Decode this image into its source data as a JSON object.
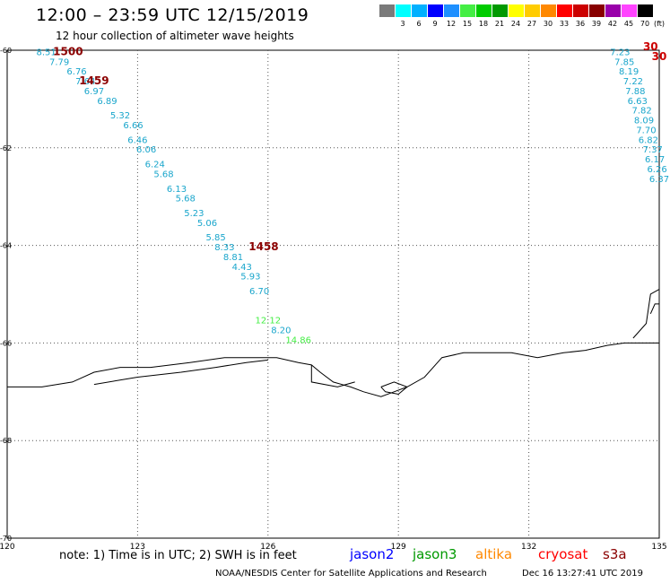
{
  "header": {
    "title": "12:00 – 23:59 UTC 12/15/2019",
    "subtitle": "12 hour collection of altimeter wave heights"
  },
  "colorbar": {
    "unit": "(ft)",
    "items": [
      {
        "label": "",
        "color": "#7a7a7a"
      },
      {
        "label": "3",
        "color": "#00ffff"
      },
      {
        "label": "6",
        "color": "#00b0ff"
      },
      {
        "label": "9",
        "color": "#0000ff"
      },
      {
        "label": "12",
        "color": "#1e90ff"
      },
      {
        "label": "15",
        "color": "#44ee44"
      },
      {
        "label": "18",
        "color": "#00cc00"
      },
      {
        "label": "21",
        "color": "#009900"
      },
      {
        "label": "24",
        "color": "#ffff00"
      },
      {
        "label": "27",
        "color": "#ffcc00"
      },
      {
        "label": "30",
        "color": "#ff8800"
      },
      {
        "label": "33",
        "color": "#ff0000"
      },
      {
        "label": "36",
        "color": "#cc0000"
      },
      {
        "label": "39",
        "color": "#880000"
      },
      {
        "label": "42",
        "color": "#9900aa"
      },
      {
        "label": "45",
        "color": "#ff44ff"
      },
      {
        "label": "70",
        "color": "#000000"
      }
    ]
  },
  "map": {
    "lon_range": [
      120,
      135
    ],
    "lat_range": [
      -70,
      -60
    ],
    "lon_ticks": [
      "120",
      "123",
      "126",
      "129",
      "132",
      "135"
    ],
    "lat_ticks": [
      "-60",
      "-62",
      "-64",
      "-66",
      "-68",
      "-70"
    ],
    "gridlines": true,
    "coast_color": "#000000"
  },
  "track_a": {
    "color": "#1aa6cc",
    "values": [
      "8.51",
      "7.79",
      "6.76",
      "7.64",
      "6.97",
      "6.89",
      "5.32",
      "6.66",
      "6.46",
      "6.06",
      "6.24",
      "5.68",
      "6.13",
      "5.68",
      "5.23",
      "5.06",
      "5.85",
      "8.33",
      "8.81",
      "4.43",
      "5.93",
      "6.70"
    ],
    "lon": [
      120.9,
      121.2,
      121.6,
      121.8,
      122.0,
      122.3,
      122.6,
      122.9,
      123.0,
      123.2,
      123.4,
      123.6,
      123.9,
      124.1,
      124.3,
      124.6,
      124.8,
      125.0,
      125.2,
      125.4,
      125.6,
      125.8
    ],
    "lat": [
      -60.1,
      -60.3,
      -60.5,
      -60.7,
      -60.9,
      -61.1,
      -61.4,
      -61.6,
      -61.9,
      -62.1,
      -62.4,
      -62.6,
      -62.9,
      -63.1,
      -63.4,
      -63.6,
      -63.9,
      -64.1,
      -64.3,
      -64.5,
      -64.7,
      -65.0
    ]
  },
  "track_b": {
    "values": [
      "12.12",
      "8.20",
      "14.86"
    ],
    "colors": [
      "#44ee44",
      "#1aa6cc",
      "#44ee44"
    ],
    "lon": [
      126.0,
      126.3,
      126.7
    ],
    "lat": [
      -65.6,
      -65.8,
      -66.0
    ]
  },
  "track_c": {
    "color": "#1aa6cc",
    "values": [
      "7.23",
      "7.85",
      "8.19",
      "7.22",
      "7.88",
      "6.63",
      "7.82",
      "8.09",
      "7.70",
      "6.82",
      "7.37",
      "6.17",
      "6.26",
      "6.37"
    ],
    "lon": [
      134.1,
      134.2,
      134.3,
      134.4,
      134.45,
      134.5,
      134.6,
      134.65,
      134.7,
      134.75,
      134.85,
      134.9,
      134.95,
      135.0
    ],
    "lat": [
      -60.1,
      -60.3,
      -60.5,
      -60.7,
      -60.9,
      -61.1,
      -61.3,
      -61.5,
      -61.7,
      -61.9,
      -62.1,
      -62.3,
      -62.5,
      -62.7
    ]
  },
  "time_labels": [
    {
      "text": "1500",
      "lon": 121.4,
      "lat": -60.1,
      "color": "#8b0000"
    },
    {
      "text": "1459",
      "lon": 122.0,
      "lat": -60.7,
      "color": "#8b0000"
    },
    {
      "text": "1458",
      "lon": 125.9,
      "lat": -64.1,
      "color": "#8b0000"
    },
    {
      "text": "30",
      "lon": 134.8,
      "lat": -60.0,
      "color": "#cc0000"
    },
    {
      "text": "30",
      "lon": 135.0,
      "lat": -60.2,
      "color": "#cc0000"
    }
  ],
  "coastline": [
    [
      [
        120.0,
        -66.9
      ],
      [
        120.8,
        -66.9
      ],
      [
        121.5,
        -66.8
      ],
      [
        122.0,
        -66.6
      ],
      [
        122.6,
        -66.5
      ],
      [
        123.3,
        -66.5
      ],
      [
        124.2,
        -66.4
      ],
      [
        125.0,
        -66.3
      ],
      [
        125.7,
        -66.3
      ],
      [
        126.2,
        -66.3
      ],
      [
        126.7,
        -66.4
      ],
      [
        127.0,
        -66.45
      ],
      [
        127.2,
        -66.6
      ],
      [
        127.5,
        -66.8
      ],
      [
        127.9,
        -66.9
      ],
      [
        128.2,
        -67.0
      ],
      [
        128.6,
        -67.1
      ],
      [
        128.9,
        -67.0
      ],
      [
        129.2,
        -66.9
      ],
      [
        129.6,
        -66.7
      ],
      [
        130.0,
        -66.3
      ],
      [
        130.5,
        -66.2
      ],
      [
        131.1,
        -66.2
      ],
      [
        131.6,
        -66.2
      ],
      [
        132.2,
        -66.3
      ],
      [
        132.8,
        -66.2
      ],
      [
        133.3,
        -66.15
      ],
      [
        133.8,
        -66.05
      ],
      [
        134.2,
        -66.0
      ],
      [
        134.6,
        -66.0
      ],
      [
        135.0,
        -66.0
      ]
    ],
    [
      [
        122.0,
        -66.85
      ],
      [
        123.0,
        -66.7
      ],
      [
        124.0,
        -66.6
      ],
      [
        124.8,
        -66.5
      ],
      [
        125.5,
        -66.4
      ],
      [
        126.0,
        -66.35
      ]
    ],
    [
      [
        127.0,
        -66.45
      ],
      [
        127.0,
        -66.8
      ],
      [
        127.6,
        -66.9
      ],
      [
        128.0,
        -66.8
      ]
    ],
    [
      [
        128.6,
        -66.9
      ],
      [
        128.9,
        -66.8
      ],
      [
        129.2,
        -66.9
      ],
      [
        129.0,
        -67.05
      ],
      [
        128.7,
        -67.0
      ],
      [
        128.6,
        -66.9
      ]
    ],
    [
      [
        134.4,
        -65.9
      ],
      [
        134.7,
        -65.6
      ],
      [
        134.8,
        -65.0
      ],
      [
        135.0,
        -64.9
      ]
    ],
    [
      [
        134.8,
        -65.4
      ],
      [
        134.9,
        -65.2
      ],
      [
        135.0,
        -65.2
      ]
    ]
  ],
  "footer": {
    "note": "note:  1) Time is in UTC;  2) SWH is in feet",
    "satellites": [
      {
        "name": "jason2",
        "color": "#0000ff"
      },
      {
        "name": "jason3",
        "color": "#009900"
      },
      {
        "name": "altika",
        "color": "#ff8800"
      },
      {
        "name": "cryosat",
        "color": "#ff0000"
      },
      {
        "name": "s3a",
        "color": "#8b0000"
      }
    ],
    "credit": "NOAA/NESDIS Center for Satellite Applications and Research",
    "timestamp": "Dec 16 13:27:41 UTC 2019"
  }
}
